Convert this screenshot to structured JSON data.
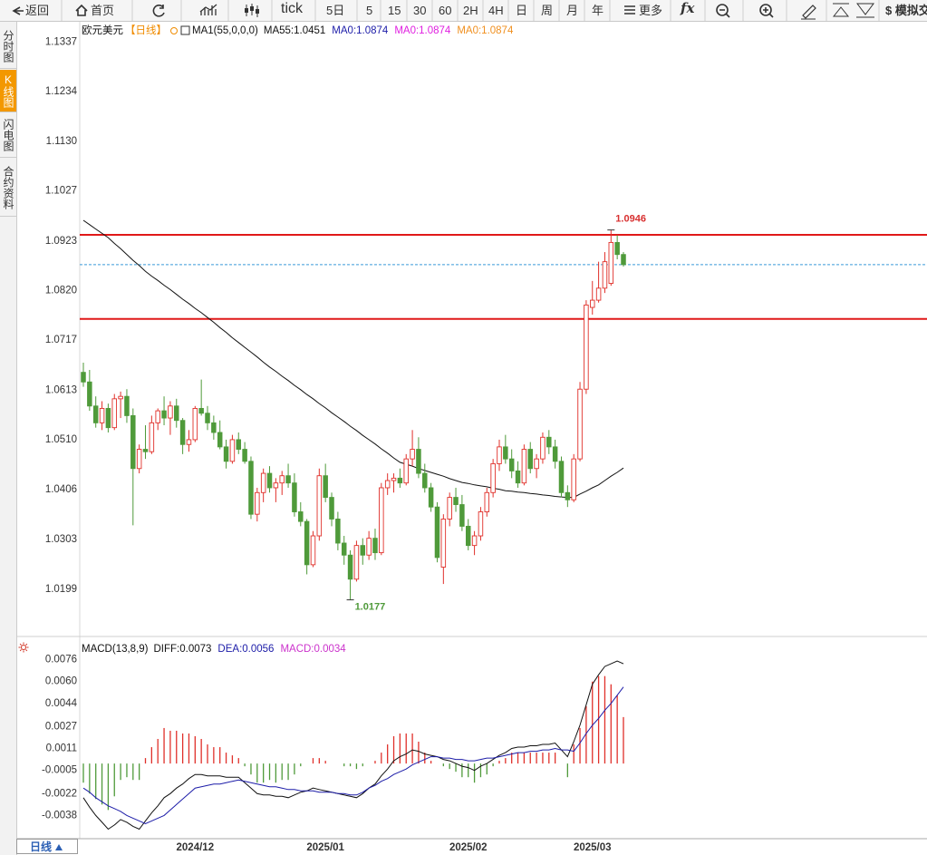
{
  "toolbar": [
    "返回",
    "首页",
    "tick",
    "5日",
    "5",
    "15",
    "30",
    "60",
    "2H",
    "4H",
    "日",
    "周",
    "月",
    "年",
    "更多",
    "fx",
    "$ 模拟交"
  ],
  "side_tabs": [
    "分时图",
    "K线图",
    "闪电图",
    "合约资料"
  ],
  "period_button": "日线",
  "chart_data": [
    {
      "type": "candlestick",
      "title": "欧元美元",
      "period": "【日线】",
      "indicator": "MA1(55,0,0,0)",
      "up_color": "#e0302a",
      "down_color": "#4f9a3a",
      "ylim": [
        1.0114,
        1.1377
      ],
      "yticks": [
        1.1337,
        1.1234,
        {
          "value": 1.113,
          "label": "1.1130"
        },
        1.1027,
        1.0923,
        {
          "value": 1.082,
          "label": "1.0820"
        },
        1.0717,
        1.0613,
        {
          "value": 1.051,
          "label": "1.0510"
        },
        1.0406,
        1.0303,
        1.0199
      ],
      "open": [
        1.065,
        1.063,
        1.058,
        1.0545,
        1.0575,
        1.0535,
        1.0595,
        1.06,
        1.056,
        1.045,
        1.049,
        1.0485,
        1.0545,
        1.057,
        1.0555,
        1.058,
        1.055,
        1.05,
        1.051,
        1.0575,
        1.0565,
        1.0545,
        1.0525,
        1.0495,
        1.0465,
        1.051,
        1.049,
        1.0465,
        1.0355,
        1.04,
        1.044,
        1.041,
        1.042,
        1.0435,
        1.042,
        1.036,
        1.034,
        1.025,
        1.031,
        1.0435,
        1.039,
        1.0345,
        1.0295,
        1.027,
        1.022,
        1.029,
        1.027,
        1.0305,
        1.0275,
        1.041,
        1.0425,
        1.043,
        1.042,
        1.047,
        1.049,
        1.044,
        1.041,
        1.037,
        1.0245,
        1.0345,
        1.039,
        1.0375,
        1.033,
        1.029,
        1.031,
        1.036,
        1.04,
        1.046,
        1.0495,
        1.047,
        1.0445,
        1.042,
        1.049,
        1.045,
        1.047,
        1.0515,
        1.0495,
        1.0465,
        1.04,
        1.0385,
        1.047,
        1.0615,
        1.0785,
        1.08,
        1.0825,
        1.0835,
        1.092,
        1.0895
      ],
      "high": [
        1.067,
        1.0655,
        1.06,
        1.059,
        1.0585,
        1.0605,
        1.061,
        1.0615,
        1.0575,
        1.05,
        1.054,
        1.056,
        1.0575,
        1.06,
        1.059,
        1.0595,
        1.0555,
        1.053,
        1.058,
        1.0635,
        1.058,
        1.056,
        1.055,
        1.051,
        1.052,
        1.0525,
        1.0505,
        1.0475,
        1.041,
        1.045,
        1.0455,
        1.043,
        1.0445,
        1.046,
        1.044,
        1.038,
        1.0345,
        1.032,
        1.045,
        1.046,
        1.04,
        1.036,
        1.031,
        1.028,
        1.03,
        1.0305,
        1.032,
        1.0325,
        1.042,
        1.044,
        1.044,
        1.045,
        1.048,
        1.053,
        1.0515,
        1.046,
        1.042,
        1.038,
        1.0355,
        1.04,
        1.041,
        1.0395,
        1.0345,
        1.032,
        1.037,
        1.041,
        1.047,
        1.051,
        1.052,
        1.049,
        1.0465,
        1.05,
        1.0505,
        1.048,
        1.0525,
        1.053,
        1.051,
        1.0475,
        1.0415,
        1.048,
        1.063,
        1.08,
        1.084,
        1.088,
        1.09,
        1.0946,
        1.0935,
        1.09
      ],
      "low": [
        1.062,
        1.057,
        1.0535,
        1.053,
        1.0525,
        1.053,
        1.0555,
        1.0545,
        1.0332,
        1.044,
        1.047,
        1.048,
        1.053,
        1.054,
        1.052,
        1.0535,
        1.048,
        1.0485,
        1.0505,
        1.056,
        1.053,
        1.051,
        1.049,
        1.045,
        1.046,
        1.048,
        1.046,
        1.0345,
        1.034,
        1.038,
        1.04,
        1.038,
        1.0395,
        1.041,
        1.035,
        1.033,
        1.023,
        1.0245,
        1.03,
        1.038,
        1.033,
        1.028,
        1.025,
        1.0177,
        1.0215,
        1.025,
        1.026,
        1.026,
        1.027,
        1.0395,
        1.04,
        1.041,
        1.0415,
        1.0455,
        1.043,
        1.04,
        1.036,
        1.0255,
        1.021,
        1.033,
        1.036,
        1.032,
        1.028,
        1.027,
        1.03,
        1.035,
        1.039,
        1.0445,
        1.046,
        1.043,
        1.041,
        1.0415,
        1.044,
        1.043,
        1.046,
        1.048,
        1.045,
        1.039,
        1.037,
        1.038,
        1.0465,
        1.0605,
        1.077,
        1.0795,
        1.0815,
        1.083,
        1.0885,
        1.087
      ],
      "close": [
        1.063,
        1.058,
        1.0545,
        1.0575,
        1.0535,
        1.0595,
        1.06,
        1.056,
        1.045,
        1.049,
        1.0485,
        1.0545,
        1.057,
        1.0555,
        1.058,
        1.055,
        1.05,
        1.051,
        1.0575,
        1.0565,
        1.0545,
        1.0525,
        1.0495,
        1.0465,
        1.051,
        1.049,
        1.0465,
        1.0355,
        1.04,
        1.044,
        1.041,
        1.042,
        1.0435,
        1.042,
        1.036,
        1.034,
        1.025,
        1.031,
        1.0435,
        1.039,
        1.0345,
        1.0295,
        1.027,
        1.022,
        1.029,
        1.027,
        1.0305,
        1.0275,
        1.041,
        1.0425,
        1.043,
        1.042,
        1.047,
        1.049,
        1.044,
        1.041,
        1.037,
        1.0265,
        1.0345,
        1.039,
        1.0375,
        1.033,
        1.029,
        1.031,
        1.036,
        1.04,
        1.046,
        1.0495,
        1.047,
        1.0445,
        1.042,
        1.049,
        1.045,
        1.047,
        1.0515,
        1.0495,
        1.0465,
        1.04,
        1.0385,
        1.047,
        1.0615,
        1.079,
        1.08,
        1.0825,
        1.088,
        1.092,
        1.0895,
        1.0874
      ],
      "series": [
        {
          "name": "MA55:1.0451",
          "color": "#111111",
          "values": [
            1.0966,
            1.0957,
            1.0948,
            1.0939,
            1.093,
            1.0918,
            1.0907,
            1.0895,
            1.0883,
            1.0872,
            1.086,
            1.085,
            1.0841,
            1.0831,
            1.0822,
            1.0812,
            1.0802,
            1.0793,
            1.0783,
            1.0774,
            1.0764,
            1.0754,
            1.0743,
            1.0733,
            1.0722,
            1.0712,
            1.0702,
            1.0692,
            1.0682,
            1.0671,
            1.0661,
            1.0652,
            1.0642,
            1.0633,
            1.0623,
            1.0614,
            1.0604,
            1.0595,
            1.0585,
            1.0576,
            1.0566,
            1.0557,
            1.0548,
            1.0538,
            1.0529,
            1.0519,
            1.051,
            1.0501,
            1.0491,
            1.0482,
            1.0472,
            1.0463,
            1.0459,
            1.0455,
            1.045,
            1.0446,
            1.0442,
            1.0438,
            1.0434,
            1.0429,
            1.0425,
            1.0421,
            1.0419,
            1.0416,
            1.0414,
            1.0412,
            1.0409,
            1.0407,
            1.0404,
            1.0403,
            1.0401,
            1.04,
            1.0398,
            1.0397,
            1.0395,
            1.0394,
            1.0392,
            1.0391,
            1.039,
            1.039,
            1.0397,
            1.0403,
            1.041,
            1.0416,
            1.0425,
            1.0434,
            1.0442,
            1.0451
          ]
        }
      ],
      "legend_extra": [
        {
          "name": "MA0:1.0874",
          "color": "#1c1ca8"
        },
        {
          "name": "MA0:1.0874",
          "color": "#e020e0"
        },
        {
          "name": "MA0:1.0874",
          "color": "#f09020"
        }
      ],
      "hlines": [
        {
          "value": 1.0936,
          "color": "#e01818"
        },
        {
          "value": 1.0761,
          "color": "#e01818"
        }
      ],
      "price_line": {
        "value": 1.0874,
        "color": "#3a9ad9"
      },
      "high_label": 1.0946,
      "low_label": 1.0177
    },
    {
      "type": "macd",
      "title": "MACD(13,8,9)",
      "up_color": "#e0302a",
      "down_color": "#4f9a3a",
      "ylim": [
        -0.0055,
        0.0091
      ],
      "yticks": [
        0.0076,
        {
          "value": 0.006,
          "label": "0.0060"
        },
        0.0044,
        0.0027,
        0.0011,
        -0.0005,
        -0.0022,
        -0.0038
      ],
      "categories": [
        null,
        null,
        null,
        null,
        null,
        null,
        null,
        null,
        null,
        null,
        null,
        null,
        null,
        null,
        null,
        null,
        null,
        null,
        "2024/12",
        null,
        null,
        null,
        null,
        null,
        null,
        null,
        null,
        null,
        null,
        null,
        null,
        null,
        null,
        null,
        null,
        null,
        null,
        null,
        null,
        "2025/01",
        null,
        null,
        null,
        null,
        null,
        null,
        null,
        null,
        null,
        null,
        null,
        null,
        null,
        null,
        null,
        null,
        null,
        null,
        null,
        null,
        null,
        null,
        "2025/02",
        null,
        null,
        null,
        null,
        null,
        null,
        null,
        null,
        null,
        null,
        null,
        null,
        null,
        null,
        null,
        null,
        null,
        null,
        null,
        "2025/03",
        null,
        null,
        null,
        null,
        null
      ],
      "series": [
        {
          "name": "DIFF:0.0073",
          "color": "#111111",
          "values": [
            -0.0025,
            -0.0032,
            -0.0038,
            -0.0043,
            -0.0048,
            -0.0045,
            -0.0041,
            -0.0043,
            -0.0046,
            -0.0048,
            -0.0042,
            -0.0036,
            -0.0031,
            -0.0025,
            -0.0022,
            -0.0018,
            -0.0015,
            -0.0011,
            -0.0008,
            -0.0008,
            -0.0009,
            -0.0009,
            -0.0009,
            -0.001,
            -0.001,
            -0.001,
            -0.0014,
            -0.0018,
            -0.0022,
            -0.0023,
            -0.0023,
            -0.0024,
            -0.0024,
            -0.0025,
            -0.0023,
            -0.0021,
            -0.002,
            -0.0018,
            -0.0019,
            -0.002,
            -0.0021,
            -0.0022,
            -0.0023,
            -0.0024,
            -0.0025,
            -0.0022,
            -0.0018,
            -0.0015,
            -0.0009,
            -0.0004,
            0.0002,
            0.0005,
            0.0007,
            0.001,
            0.0009,
            0.0007,
            0.0006,
            0.0005,
            0.0003,
            0.0002,
            0.0,
            -0.0002,
            -0.0003,
            -0.0005,
            -0.0002,
            0.0,
            0.0003,
            0.0006,
            0.0008,
            0.0011,
            0.0012,
            0.0012,
            0.0013,
            0.0013,
            0.0014,
            0.0014,
            0.0015,
            0.001,
            0.0005,
            0.0016,
            0.0028,
            0.0043,
            0.0058,
            0.0065,
            0.0071,
            0.0073,
            0.0075,
            0.0073
          ]
        },
        {
          "name": "DEA:0.0056",
          "color": "#1c1ca8",
          "values": [
            -0.0018,
            -0.0021,
            -0.0025,
            -0.0028,
            -0.0031,
            -0.0033,
            -0.0035,
            -0.0038,
            -0.004,
            -0.0042,
            -0.0044,
            -0.0042,
            -0.004,
            -0.0038,
            -0.0034,
            -0.003,
            -0.0026,
            -0.0022,
            -0.0018,
            -0.0017,
            -0.0016,
            -0.0015,
            -0.0015,
            -0.0014,
            -0.0013,
            -0.0012,
            -0.0013,
            -0.0014,
            -0.0015,
            -0.0016,
            -0.0017,
            -0.0017,
            -0.0018,
            -0.0019,
            -0.0019,
            -0.002,
            -0.002,
            -0.002,
            -0.0021,
            -0.0021,
            -0.0021,
            -0.0022,
            -0.0022,
            -0.0023,
            -0.0023,
            -0.0021,
            -0.0018,
            -0.0016,
            -0.0013,
            -0.0011,
            -0.0008,
            -0.0006,
            -0.0004,
            -0.0001,
            0.0001,
            0.0003,
            0.0005,
            0.0005,
            0.0004,
            0.0004,
            0.0003,
            0.0003,
            0.0002,
            0.0002,
            0.0003,
            0.0004,
            0.0004,
            0.0005,
            0.0006,
            0.0007,
            0.0008,
            0.0008,
            0.0009,
            0.0009,
            0.001,
            0.001,
            0.0011,
            0.001,
            0.001,
            0.0009,
            0.0015,
            0.0022,
            0.0028,
            0.0033,
            0.0039,
            0.0044,
            0.005,
            0.0056
          ]
        },
        {
          "name": "MACD:0.0034",
          "color": "#cc33cc",
          "kind": "bar",
          "values": [
            -0.0014,
            -0.0022,
            -0.0026,
            -0.003,
            -0.0034,
            -0.0024,
            -0.0012,
            -0.001,
            -0.0012,
            -0.0012,
            0.0004,
            0.0012,
            0.0018,
            0.0026,
            0.0024,
            0.0024,
            0.0022,
            0.0022,
            0.002,
            0.0018,
            0.0014,
            0.0012,
            0.0012,
            0.0008,
            0.0006,
            0.0004,
            -0.0002,
            -0.0008,
            -0.0014,
            -0.0014,
            -0.0012,
            -0.0014,
            -0.0012,
            -0.0012,
            -0.0008,
            -0.0002,
            0.0,
            0.0004,
            0.0004,
            0.0002,
            0.0,
            0.0,
            -0.0002,
            -0.0002,
            -0.0004,
            -0.0002,
            0.0,
            0.0002,
            0.0008,
            0.0014,
            0.002,
            0.0022,
            0.0022,
            0.0022,
            0.0016,
            0.0008,
            0.0002,
            0.0,
            -0.0002,
            -0.0004,
            -0.0006,
            -0.001,
            -0.001,
            -0.0014,
            -0.001,
            -0.0008,
            -0.0002,
            0.0002,
            0.0004,
            0.0008,
            0.0008,
            0.0008,
            0.0008,
            0.0008,
            0.0008,
            0.0008,
            0.0008,
            0.0,
            -0.001,
            0.0014,
            0.0026,
            0.0042,
            0.006,
            0.0064,
            0.0064,
            0.0058,
            0.005,
            0.0034
          ]
        }
      ]
    }
  ]
}
